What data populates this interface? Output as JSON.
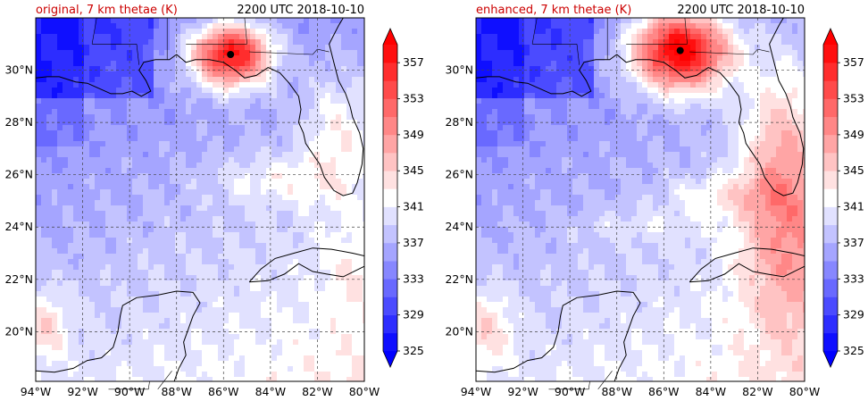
{
  "panels": [
    {
      "label": "original, 7 km thetae (K)",
      "time": "2200 UTC 2018-10-10",
      "storm_lon": -85.7,
      "storm_lat": 30.6
    },
    {
      "label": "enhanced, 7 km thetae (K)",
      "time": "2200 UTC 2018-10-10",
      "storm_lon": -85.3,
      "storm_lat": 30.75
    }
  ],
  "colors": {
    "title_label": "#cc0000",
    "coast": "#000000",
    "gridline": "#444444"
  },
  "map": {
    "lon_range": [
      -94,
      -80
    ],
    "lat_range": [
      18.1,
      32.0
    ],
    "lon_ticks": [
      {
        "value": -94,
        "label": "94°W"
      },
      {
        "value": -92,
        "label": "92°W"
      },
      {
        "value": -90,
        "label": "90°W"
      },
      {
        "value": -88,
        "label": "88°W"
      },
      {
        "value": -86,
        "label": "86°W"
      },
      {
        "value": -84,
        "label": "84°W"
      },
      {
        "value": -82,
        "label": "82°W"
      },
      {
        "value": -80,
        "label": "80°W"
      }
    ],
    "lat_ticks": [
      {
        "value": 20,
        "label": "20°N"
      },
      {
        "value": 22,
        "label": "22°N"
      },
      {
        "value": 24,
        "label": "24°N"
      },
      {
        "value": 26,
        "label": "26°N"
      },
      {
        "value": 28,
        "label": "28°N"
      },
      {
        "value": 30,
        "label": "30°N"
      }
    ]
  },
  "colorbar": {
    "min": 325,
    "max": 359,
    "step": 2,
    "tick_labels": [
      "325",
      "329",
      "333",
      "337",
      "341",
      "345",
      "349",
      "353",
      "357"
    ],
    "tick_values": [
      325,
      329,
      333,
      337,
      341,
      345,
      349,
      353,
      357
    ]
  }
}
